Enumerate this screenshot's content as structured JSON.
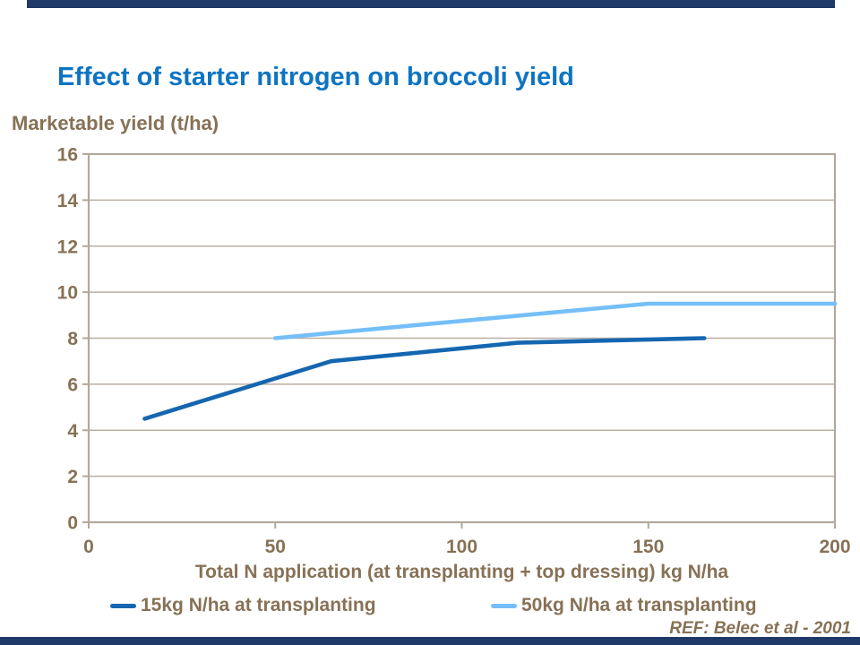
{
  "slide": {
    "title": "Effect of starter nitrogen on broccoli yield",
    "reference": "REF: Belec et al - 2001"
  },
  "colors": {
    "title_blue": "#0e74c2",
    "text_brown": "#877155",
    "frame": "#b2a89b",
    "grid": "#b9afa2",
    "accent_bar": "#1f3968",
    "series_dark_blue": "#1566b0",
    "series_light_blue": "#74bff8"
  },
  "chart_data": {
    "type": "line",
    "title": "",
    "xlabel": "Total N application (at transplanting + top dressing) kg N/ha",
    "ylabel": "Marketable yield (t/ha)",
    "xlim": [
      0,
      200
    ],
    "ylim": [
      0,
      16
    ],
    "x_ticks": [
      0,
      50,
      100,
      150,
      200
    ],
    "y_ticks": [
      0,
      2,
      4,
      6,
      8,
      10,
      12,
      14,
      16
    ],
    "grid": "horizontal gridlines at every y tick, boxed plot frame",
    "legend_position": "bottom",
    "series": [
      {
        "name": "15kg N/ha at transplanting",
        "color": "#1566b0",
        "points": [
          [
            15,
            4.5
          ],
          [
            65,
            7.0
          ],
          [
            115,
            7.8
          ],
          [
            165,
            8.0
          ]
        ]
      },
      {
        "name": "50kg N/ha at transplanting",
        "color": "#74bff8",
        "points": [
          [
            50,
            8.0
          ],
          [
            150,
            9.5
          ],
          [
            200,
            9.5
          ]
        ]
      }
    ]
  }
}
